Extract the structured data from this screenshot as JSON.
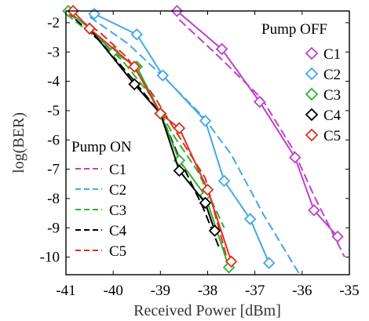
{
  "chart_data": {
    "type": "line",
    "xlabel": "Received Power [dBm]",
    "ylabel": "log(BER)",
    "xlim": [
      -41,
      -35
    ],
    "ylim": [
      -10.6,
      -1.6
    ],
    "xticks": [
      "-41",
      "-40",
      "-39",
      "-38",
      "-37",
      "-36",
      "-35"
    ],
    "yticks": [
      "-2",
      "-3",
      "-4",
      "-5",
      "-6",
      "-7",
      "-8",
      "-9",
      "-10"
    ],
    "legend_off_title": "Pump OFF",
    "legend_on_title": "Pump ON",
    "colors": {
      "C1": "#c040c8",
      "C2": "#40a8ec",
      "C3": "#30b030",
      "C4": "#000000",
      "C5": "#e03020"
    },
    "pump_off": [
      {
        "name": "C1",
        "x": [
          -38.65,
          -37.7,
          -36.9,
          -36.15,
          -35.75,
          -35.25
        ],
        "y": [
          -1.6,
          -2.9,
          -4.7,
          -6.6,
          -8.4,
          -9.3
        ]
      },
      {
        "name": "C2",
        "x": [
          -40.4,
          -39.5,
          -38.95,
          -38.05,
          -37.65,
          -37.1,
          -36.7
        ],
        "y": [
          -1.7,
          -2.4,
          -3.8,
          -5.35,
          -7.4,
          -8.7,
          -10.2
        ]
      },
      {
        "name": "C3",
        "x": [
          -40.95,
          -40.5,
          -40.0,
          -39.5,
          -39.0,
          -38.6,
          -38.05,
          -37.55
        ],
        "y": [
          -1.6,
          -2.2,
          -3.0,
          -3.5,
          -5.1,
          -6.7,
          -7.9,
          -10.35
        ]
      },
      {
        "name": "C4",
        "x": [
          -40.5,
          -39.55,
          -39.0,
          -38.6,
          -38.05,
          -37.85
        ],
        "y": [
          -2.2,
          -4.1,
          -5.1,
          -7.05,
          -8.15,
          -9.1
        ]
      },
      {
        "name": "C5",
        "x": [
          -40.85,
          -40.5,
          -39.55,
          -39.0,
          -38.6,
          -38.0,
          -37.5
        ],
        "y": [
          -1.6,
          -2.2,
          -3.5,
          -5.1,
          -5.6,
          -7.7,
          -10.15
        ]
      }
    ],
    "pump_on": [
      {
        "name": "C1",
        "x": [
          -38.6,
          -37.8,
          -36.85,
          -36.2,
          -35.75,
          -35.1
        ],
        "y": [
          -1.9,
          -3.1,
          -4.6,
          -6.3,
          -7.9,
          -10.0
        ]
      },
      {
        "name": "C2",
        "x": [
          -40.5,
          -39.7,
          -38.9,
          -38.1,
          -37.5,
          -36.8,
          -36.05
        ],
        "y": [
          -1.8,
          -2.7,
          -3.9,
          -5.2,
          -6.5,
          -8.6,
          -10.6
        ]
      },
      {
        "name": "C3",
        "x": [
          -41.0,
          -40.4,
          -39.8,
          -39.2,
          -38.7,
          -38.2,
          -37.65
        ],
        "y": [
          -1.7,
          -2.45,
          -3.3,
          -4.5,
          -5.9,
          -7.1,
          -9.0
        ]
      },
      {
        "name": "C4",
        "x": [
          -41.0,
          -40.3,
          -39.6,
          -39.0,
          -38.55,
          -38.1,
          -37.75
        ],
        "y": [
          -1.6,
          -2.6,
          -3.9,
          -5.1,
          -6.8,
          -8.3,
          -9.7
        ]
      },
      {
        "name": "C5",
        "x": [
          -40.95,
          -40.3,
          -39.7,
          -39.1,
          -38.6,
          -38.05,
          -37.6
        ],
        "y": [
          -1.7,
          -2.3,
          -3.2,
          -4.6,
          -5.9,
          -7.3,
          -10.0
        ]
      }
    ]
  }
}
